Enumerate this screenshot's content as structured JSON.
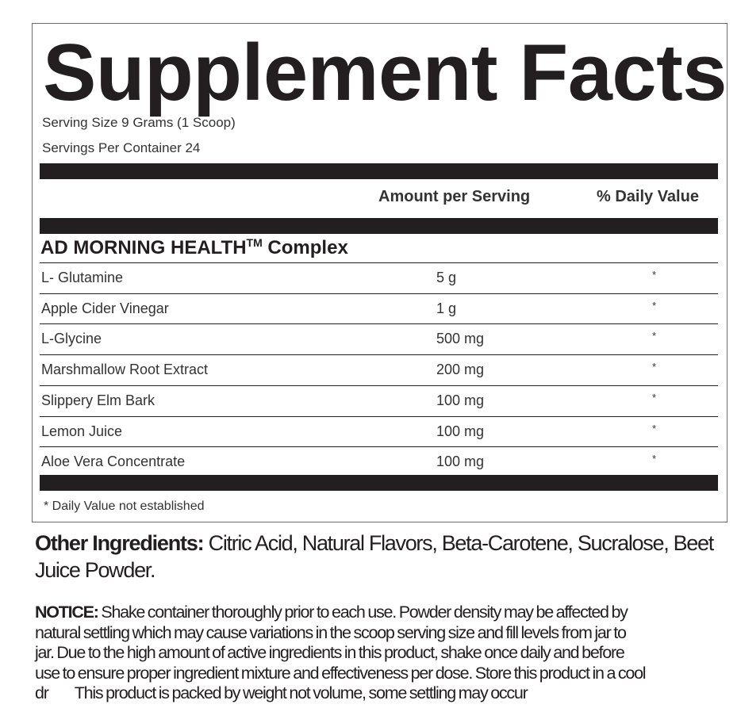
{
  "title": "Supplement Facts",
  "serving_size": "Serving Size 9 Grams (1 Scoop)",
  "servings_per_container": "Servings Per Container 24",
  "headers": {
    "amount": "Amount per Serving",
    "dv": "% Daily Value"
  },
  "complex": {
    "name": "AD MORNING HEALTH",
    "tm": "TM",
    "suffix": " Complex"
  },
  "rows": [
    {
      "name": "L- Glutamine",
      "amount": "5 g",
      "dv": "*"
    },
    {
      "name": "Apple Cider Vinegar",
      "amount": "1 g",
      "dv": "*"
    },
    {
      "name": "L-Glycine",
      "amount": "500 mg",
      "dv": "*"
    },
    {
      "name": "Marshmallow Root Extract",
      "amount": "200 mg",
      "dv": "*"
    },
    {
      "name": "Slippery Elm Bark",
      "amount": "100 mg",
      "dv": "*"
    },
    {
      "name": "Lemon Juice",
      "amount": "100 mg",
      "dv": "*"
    },
    {
      "name": "Aloe Vera Concentrate",
      "amount": "100 mg",
      "dv": "*"
    }
  ],
  "footnote": "* Daily Value not established",
  "other_ingredients": {
    "label": "Other Ingredients:",
    "text": " Citric Acid, Natural Flavors, Beta-Carotene, Sucralose, Beet Juice Powder."
  },
  "notice": {
    "label": "NOTICE:",
    "lines": [
      " Shake container thoroughly prior to each use. Powder density may be affected by",
      "natural settling which may cause variations in the scoop serving size and fill levels from jar to",
      "jar. Due to the high amount of active ingredients in this product, shake once daily and before",
      "use to ensure proper ingredient mixture and effectiveness per dose. Store this product in a cool",
      "dr         This product is packed by weight not volume, some settling may occur"
    ]
  }
}
